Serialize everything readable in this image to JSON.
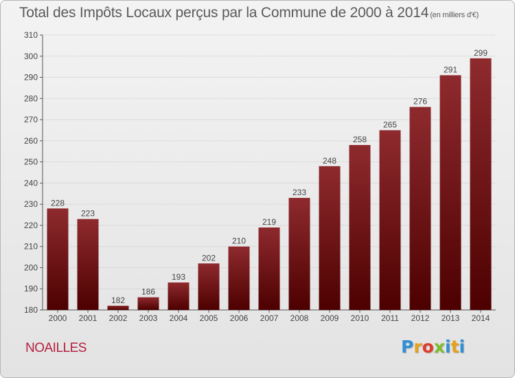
{
  "header": {
    "title": "Total des Impôts Locaux perçus par la Commune de 2000 à 2014",
    "unit": "(en milliers d'€)"
  },
  "footer": {
    "commune": "NOAILLES",
    "brand": [
      "P",
      "r",
      "o",
      "x",
      "i",
      "t",
      "i"
    ],
    "brand_colors": [
      "#2e8fd6",
      "#e8a01c",
      "#e03a2a",
      "#7abf2b",
      "#2e8fd6",
      "#e8a01c",
      "#2e8fd6"
    ]
  },
  "chart_data": {
    "type": "bar",
    "title": "Total des Impôts Locaux perçus par la Commune de 2000 à 2014",
    "ylabel": "en milliers d'€",
    "xlabel": "",
    "categories": [
      "2000",
      "2001",
      "2002",
      "2003",
      "2004",
      "2005",
      "2006",
      "2007",
      "2008",
      "2009",
      "2010",
      "2011",
      "2012",
      "2013",
      "2014"
    ],
    "values": [
      228,
      223,
      182,
      186,
      193,
      202,
      210,
      219,
      233,
      248,
      258,
      265,
      276,
      291,
      299
    ],
    "ylim": [
      180,
      310
    ],
    "yticks": [
      180,
      190,
      200,
      210,
      220,
      230,
      240,
      250,
      260,
      270,
      280,
      290,
      300,
      310
    ],
    "grid": true,
    "bar_color_top": "#8e2a2e",
    "bar_color_bottom": "#4d0000"
  }
}
